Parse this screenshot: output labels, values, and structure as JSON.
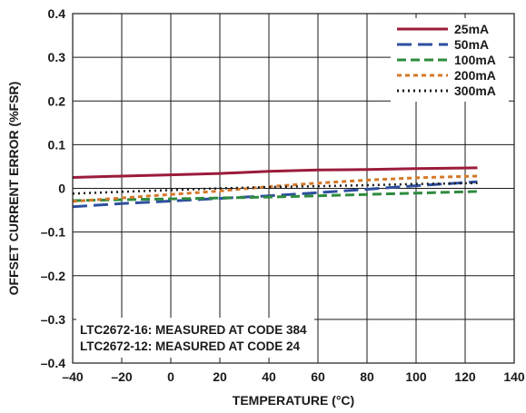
{
  "chart_data": {
    "type": "line",
    "title": "",
    "xlabel": "TEMPERATURE (°C)",
    "ylabel": "OFFSET CURRENT ERROR (%FSR)",
    "xlim": [
      -40,
      140
    ],
    "ylim": [
      -0.4,
      0.4
    ],
    "xticks": [
      -40,
      -20,
      0,
      20,
      40,
      60,
      80,
      100,
      120,
      140
    ],
    "yticks": [
      -0.4,
      -0.3,
      -0.2,
      -0.1,
      0,
      0.1,
      0.2,
      0.3,
      0.4
    ],
    "xtick_labels": [
      "–40",
      "–20",
      "0",
      "20",
      "40",
      "60",
      "80",
      "100",
      "120",
      "140"
    ],
    "ytick_labels": [
      "–0.4",
      "–0.3",
      "–0.2",
      "–0.1",
      "0",
      "0.1",
      "0.2",
      "0.3",
      "0.4"
    ],
    "grid": true,
    "legend_position": "top-right",
    "annotations": [
      "LTC2672-16: MEASURED AT CODE 384",
      "LTC2672-12: MEASURED AT CODE 24"
    ],
    "series": [
      {
        "name": "25mA",
        "color": "#9b1b3a",
        "dash": "solid",
        "x": [
          -40,
          -20,
          0,
          20,
          40,
          60,
          80,
          100,
          125
        ],
        "y": [
          0.025,
          0.028,
          0.031,
          0.034,
          0.039,
          0.042,
          0.043,
          0.045,
          0.047
        ]
      },
      {
        "name": "50mA",
        "color": "#2e4f9e",
        "dash": "long-dash",
        "x": [
          -40,
          -20,
          0,
          20,
          40,
          60,
          80,
          100,
          125
        ],
        "y": [
          -0.042,
          -0.035,
          -0.029,
          -0.023,
          -0.017,
          -0.01,
          -0.002,
          0.006,
          0.015
        ]
      },
      {
        "name": "100mA",
        "color": "#2e8b3e",
        "dash": "dash",
        "x": [
          -40,
          -20,
          0,
          20,
          40,
          60,
          80,
          100,
          125
        ],
        "y": [
          -0.028,
          -0.026,
          -0.024,
          -0.022,
          -0.02,
          -0.017,
          -0.014,
          -0.011,
          -0.007
        ]
      },
      {
        "name": "200mA",
        "color": "#d4782a",
        "dash": "short-dash",
        "x": [
          -40,
          -20,
          0,
          20,
          40,
          60,
          80,
          100,
          125
        ],
        "y": [
          -0.03,
          -0.022,
          -0.014,
          -0.006,
          0.004,
          0.012,
          0.019,
          0.024,
          0.028
        ]
      },
      {
        "name": "300mA",
        "color": "#1a1a1a",
        "dash": "dot",
        "x": [
          -40,
          -20,
          0,
          20,
          40,
          60,
          80,
          100,
          125
        ],
        "y": [
          -0.012,
          -0.008,
          -0.004,
          0.0,
          0.003,
          0.005,
          0.007,
          0.01,
          0.012
        ]
      }
    ]
  }
}
